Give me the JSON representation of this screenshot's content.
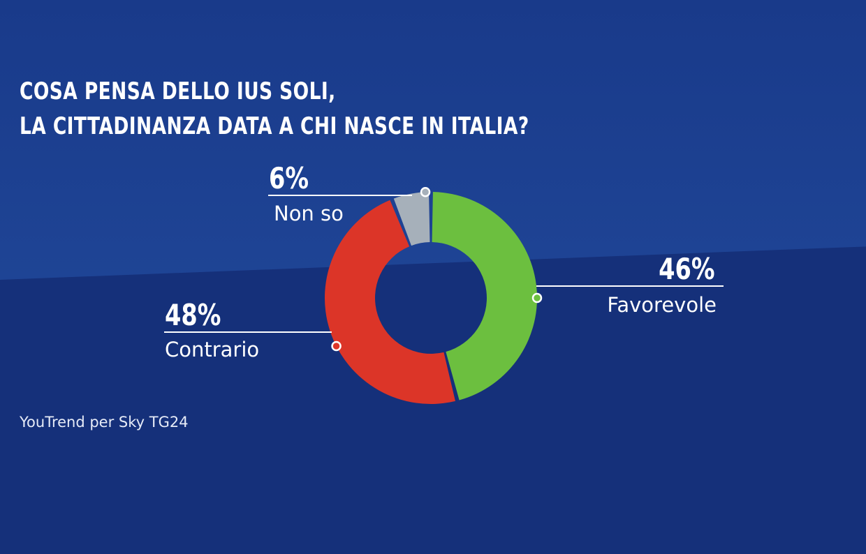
{
  "chart_data": {
    "type": "pie",
    "title": [
      "COSA PENSA DELLO IUS SOLI,",
      "LA CITTADINANZA DATA A CHI NASCE IN ITALIA?"
    ],
    "slices": [
      {
        "label": "Favorevole",
        "value": 46,
        "value_label": "46%",
        "color": "#6cbf3f"
      },
      {
        "label": "Contrario",
        "value": 48,
        "value_label": "48%",
        "color": "#dc3528"
      },
      {
        "label": "Non so",
        "value": 6,
        "value_label": "6%",
        "color": "#a6b0ba"
      }
    ],
    "source": "YouTrend per Sky TG24"
  }
}
